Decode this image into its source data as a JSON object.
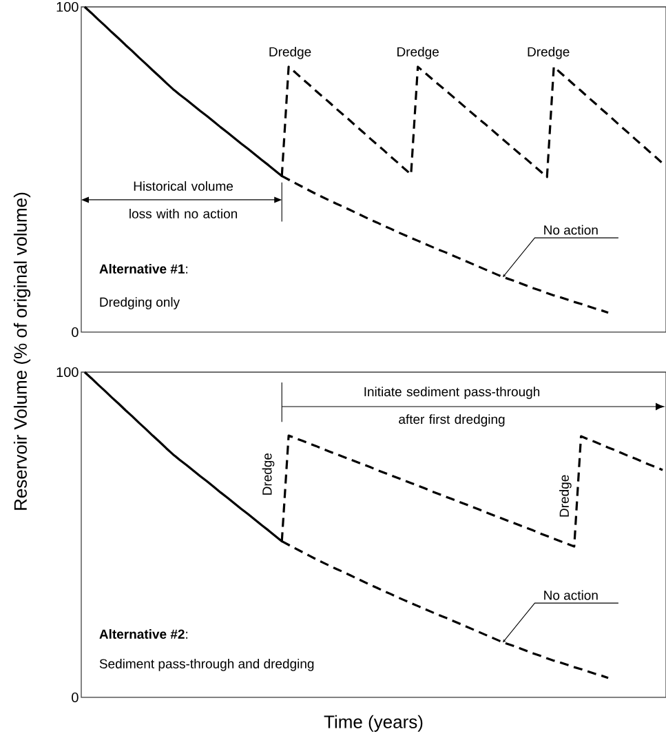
{
  "chart_data": [
    {
      "type": "line",
      "ylabel": "Reservoir Volume (% of original volume)",
      "ylim": [
        0,
        100
      ],
      "yticks": [
        0,
        100
      ],
      "tick_labels": "y",
      "categories": [
        null,
        null,
        null,
        null,
        null,
        null,
        null,
        null,
        null,
        null,
        null,
        null,
        null,
        null,
        null,
        null,
        null,
        null,
        null,
        null,
        null,
        null,
        null,
        null,
        null,
        null,
        null,
        null,
        null,
        null,
        null,
        null,
        null,
        null,
        null,
        null,
        null,
        null,
        null,
        null,
        null,
        null,
        null,
        null,
        null,
        null,
        null,
        null,
        null,
        null,
        null,
        null,
        null,
        null,
        null,
        null,
        null,
        null,
        null,
        null,
        null,
        null,
        null,
        null,
        null,
        null,
        null,
        null,
        null,
        null,
        null,
        null,
        null,
        null,
        null,
        null,
        null,
        null,
        null,
        null,
        null,
        null,
        null,
        null,
        null,
        null
      ],
      "series": [
        {
          "color": "#000000",
          "line_style": "dashed",
          "values": [
            100,
            98.1,
            96.1,
            94.2,
            92.2,
            90.3,
            88.3,
            86.4,
            84.4,
            82.5,
            80.5,
            78.6,
            76.6,
            74.7,
            73,
            71.4,
            69.7,
            68,
            66.4,
            64.7,
            63,
            61.4,
            59.7,
            58,
            56.4,
            54.7,
            53,
            51.4,
            49.7,
            48,
            81.6,
            79.8,
            77.9,
            76.1,
            74.2,
            72.4,
            70.6,
            68.7,
            66.9,
            65.1,
            63.2,
            61.4,
            59.5,
            57.7,
            55.9,
            54,
            52.2,
            50.3,
            48.5,
            81.6,
            79.8,
            78,
            76.2,
            74.5,
            72.7,
            70.9,
            69.1,
            67.3,
            65.5,
            63.8,
            62,
            60.2,
            58.4,
            56.6,
            54.8,
            53.1,
            51.3,
            49.5,
            47.7,
            81.6,
            79.7,
            77.9,
            76,
            74.2,
            72.3,
            70.5,
            68.6,
            66.8,
            64.9,
            63,
            61.2,
            59.3,
            57.5,
            55.6,
            53.8,
            51.9
          ]
        },
        {
          "color": "#000000",
          "line_style": "dashed",
          "values": [
            null,
            null,
            null,
            null,
            null,
            null,
            null,
            null,
            null,
            null,
            null,
            null,
            null,
            null,
            null,
            null,
            null,
            null,
            null,
            null,
            null,
            null,
            null,
            null,
            null,
            null,
            null,
            null,
            null,
            48,
            46.9,
            45.8,
            44.7,
            43.6,
            42.5,
            41.5,
            40.5,
            39.5,
            38.6,
            37.6,
            36.6,
            35.6,
            34.6,
            33.7,
            32.7,
            31.8,
            30.8,
            29.9,
            29,
            28.1,
            27.2,
            26.3,
            25.4,
            24.6,
            23.7,
            22.8,
            21.9,
            21,
            20.1,
            19.2,
            18.3,
            17.4,
            16.6,
            15.9,
            15.1,
            14.3,
            13.5,
            12.8,
            12,
            11.3,
            10.7,
            10,
            9.3,
            8.7,
            8,
            7.3,
            6.7,
            6,
            null,
            null,
            null,
            null,
            null,
            null,
            null,
            null
          ]
        }
      ],
      "annotations": [
        "Dredge",
        "Dredge",
        "Dredge",
        "Historical volume loss with no action",
        "No action",
        "**Alternative #1**:",
        "Dredging only"
      ]
    },
    {
      "type": "line",
      "xlabel": "Time (years)",
      "ylim": [
        0,
        100
      ],
      "yticks": [
        0,
        100
      ],
      "tick_labels": "y",
      "categories": [
        null,
        null,
        null,
        null,
        null,
        null,
        null,
        null,
        null,
        null,
        null,
        null,
        null,
        null,
        null,
        null,
        null,
        null,
        null,
        null,
        null,
        null,
        null,
        null,
        null,
        null,
        null,
        null,
        null,
        null,
        null,
        null,
        null,
        null,
        null,
        null,
        null,
        null,
        null,
        null,
        null,
        null,
        null,
        null,
        null,
        null,
        null,
        null,
        null,
        null,
        null,
        null,
        null,
        null,
        null,
        null,
        null,
        null,
        null,
        null,
        null,
        null,
        null,
        null,
        null,
        null,
        null,
        null,
        null,
        null,
        null,
        null,
        null,
        null,
        null,
        null,
        null,
        null,
        null,
        null,
        null,
        null,
        null,
        null,
        null,
        null
      ],
      "series": [
        {
          "color": "#000000",
          "line_style": "dashed",
          "values": [
            100,
            98.1,
            96.1,
            94.2,
            92.2,
            90.3,
            88.3,
            86.4,
            84.4,
            82.5,
            80.5,
            78.6,
            76.6,
            74.7,
            73,
            71.4,
            69.7,
            68,
            66.4,
            64.7,
            63,
            61.4,
            59.7,
            58,
            56.4,
            54.7,
            53,
            51.4,
            49.7,
            48,
            80.5,
            79.7,
            78.9,
            78.1,
            77.3,
            76.4,
            75.6,
            74.8,
            74,
            73.2,
            72.4,
            71.6,
            70.8,
            69.9,
            69.1,
            68.3,
            67.5,
            66.7,
            65.9,
            65.1,
            64.3,
            63.4,
            62.6,
            61.8,
            61,
            60.2,
            59.4,
            58.6,
            57.8,
            56.9,
            56.1,
            55.3,
            54.5,
            53.7,
            52.9,
            52.1,
            51.3,
            50.4,
            49.6,
            48.8,
            48,
            47.2,
            46.4,
            80.3,
            79.4,
            78.6,
            77.7,
            76.8,
            76,
            75.1,
            74.2,
            73.4,
            72.5,
            71.6,
            70.8,
            69.9
          ]
        },
        {
          "color": "#000000",
          "line_style": "dashed",
          "values": [
            null,
            null,
            null,
            null,
            null,
            null,
            null,
            null,
            null,
            null,
            null,
            null,
            null,
            null,
            null,
            null,
            null,
            null,
            null,
            null,
            null,
            null,
            null,
            null,
            null,
            null,
            null,
            null,
            null,
            48,
            46.9,
            45.8,
            44.7,
            43.6,
            42.5,
            41.5,
            40.5,
            39.5,
            38.6,
            37.6,
            36.6,
            35.6,
            34.6,
            33.7,
            32.7,
            31.8,
            30.8,
            29.9,
            29,
            28.1,
            27.2,
            26.3,
            25.4,
            24.6,
            23.7,
            22.8,
            21.9,
            21,
            20.1,
            19.2,
            18.3,
            17.4,
            16.6,
            15.9,
            15.1,
            14.3,
            13.5,
            12.8,
            12,
            11.3,
            10.7,
            10,
            9.3,
            8.7,
            8,
            7.3,
            6.7,
            6,
            null,
            null,
            null,
            null,
            null,
            null,
            null,
            null
          ]
        }
      ],
      "annotations": [
        "Dredge",
        "Dredge",
        "Initiate sediment pass-through after first dredging",
        "No action",
        "**Alternative #2**:",
        "Sediment pass-through and dredging"
      ]
    }
  ]
}
